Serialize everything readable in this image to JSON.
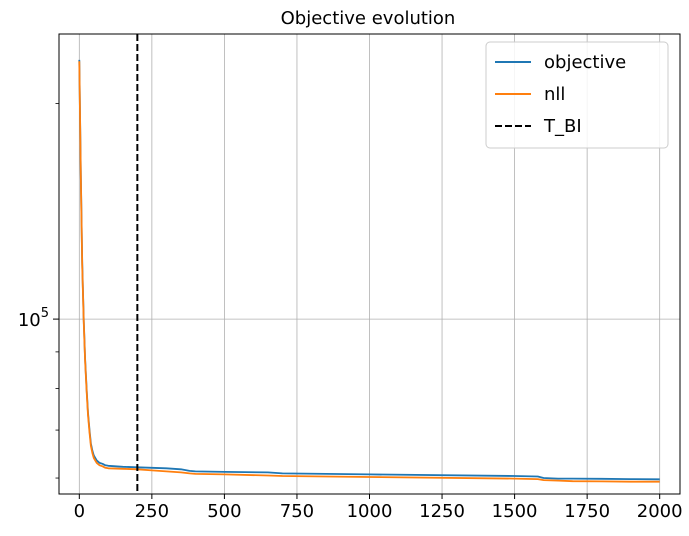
{
  "chart_data": {
    "type": "line",
    "title": "Objective evolution",
    "xlabel": "",
    "ylabel": "",
    "xlim": [
      -70,
      2070
    ],
    "ylim": [
      57000,
      250000
    ],
    "yscale": "log",
    "grid": true,
    "legend_position": "top-right",
    "x_ticks": [
      0,
      250,
      500,
      750,
      1000,
      1250,
      1500,
      1750,
      2000
    ],
    "y_major_ticks": [
      {
        "value": 100000,
        "base": "10",
        "exp": "5"
      }
    ],
    "y_minor_ticks": [
      60000,
      70000,
      80000,
      90000,
      200000
    ],
    "series": [
      {
        "name": "objective",
        "color": "#1f77b4",
        "style": "solid",
        "x": [
          0,
          5,
          10,
          15,
          20,
          25,
          30,
          35,
          40,
          45,
          50,
          60,
          70,
          80,
          90,
          100,
          150,
          200,
          250,
          300,
          350,
          380,
          400,
          500,
          650,
          700,
          1000,
          1500,
          1580,
          1600,
          1650,
          1700,
          1800,
          1900,
          2000
        ],
        "y": [
          230000,
          160000,
          120000,
          100000,
          88000,
          80000,
          74000,
          70000,
          67000,
          65500,
          64500,
          63500,
          63000,
          62800,
          62500,
          62400,
          62200,
          62100,
          62000,
          61900,
          61700,
          61400,
          61300,
          61200,
          61100,
          60900,
          60700,
          60400,
          60300,
          60000,
          59900,
          59900,
          59850,
          59800,
          59750
        ]
      },
      {
        "name": "nll",
        "color": "#ff7f0e",
        "style": "solid",
        "x": [
          0,
          5,
          10,
          15,
          20,
          25,
          30,
          35,
          40,
          45,
          50,
          60,
          70,
          80,
          90,
          100,
          150,
          200,
          250,
          300,
          350,
          380,
          400,
          500,
          650,
          700,
          1000,
          1500,
          1580,
          1600,
          1650,
          1700,
          1800,
          1900,
          2000
        ],
        "y": [
          229000,
          159000,
          119000,
          99500,
          87500,
          79500,
          73500,
          69500,
          66500,
          65000,
          64000,
          63000,
          62500,
          62300,
          62000,
          61900,
          61800,
          61700,
          61500,
          61300,
          61100,
          60900,
          60800,
          60700,
          60500,
          60400,
          60200,
          59900,
          59800,
          59600,
          59500,
          59400,
          59350,
          59300,
          59300
        ]
      },
      {
        "name": "T_BI",
        "color": "#000000",
        "style": "dashed",
        "vline_x": 200
      }
    ]
  }
}
